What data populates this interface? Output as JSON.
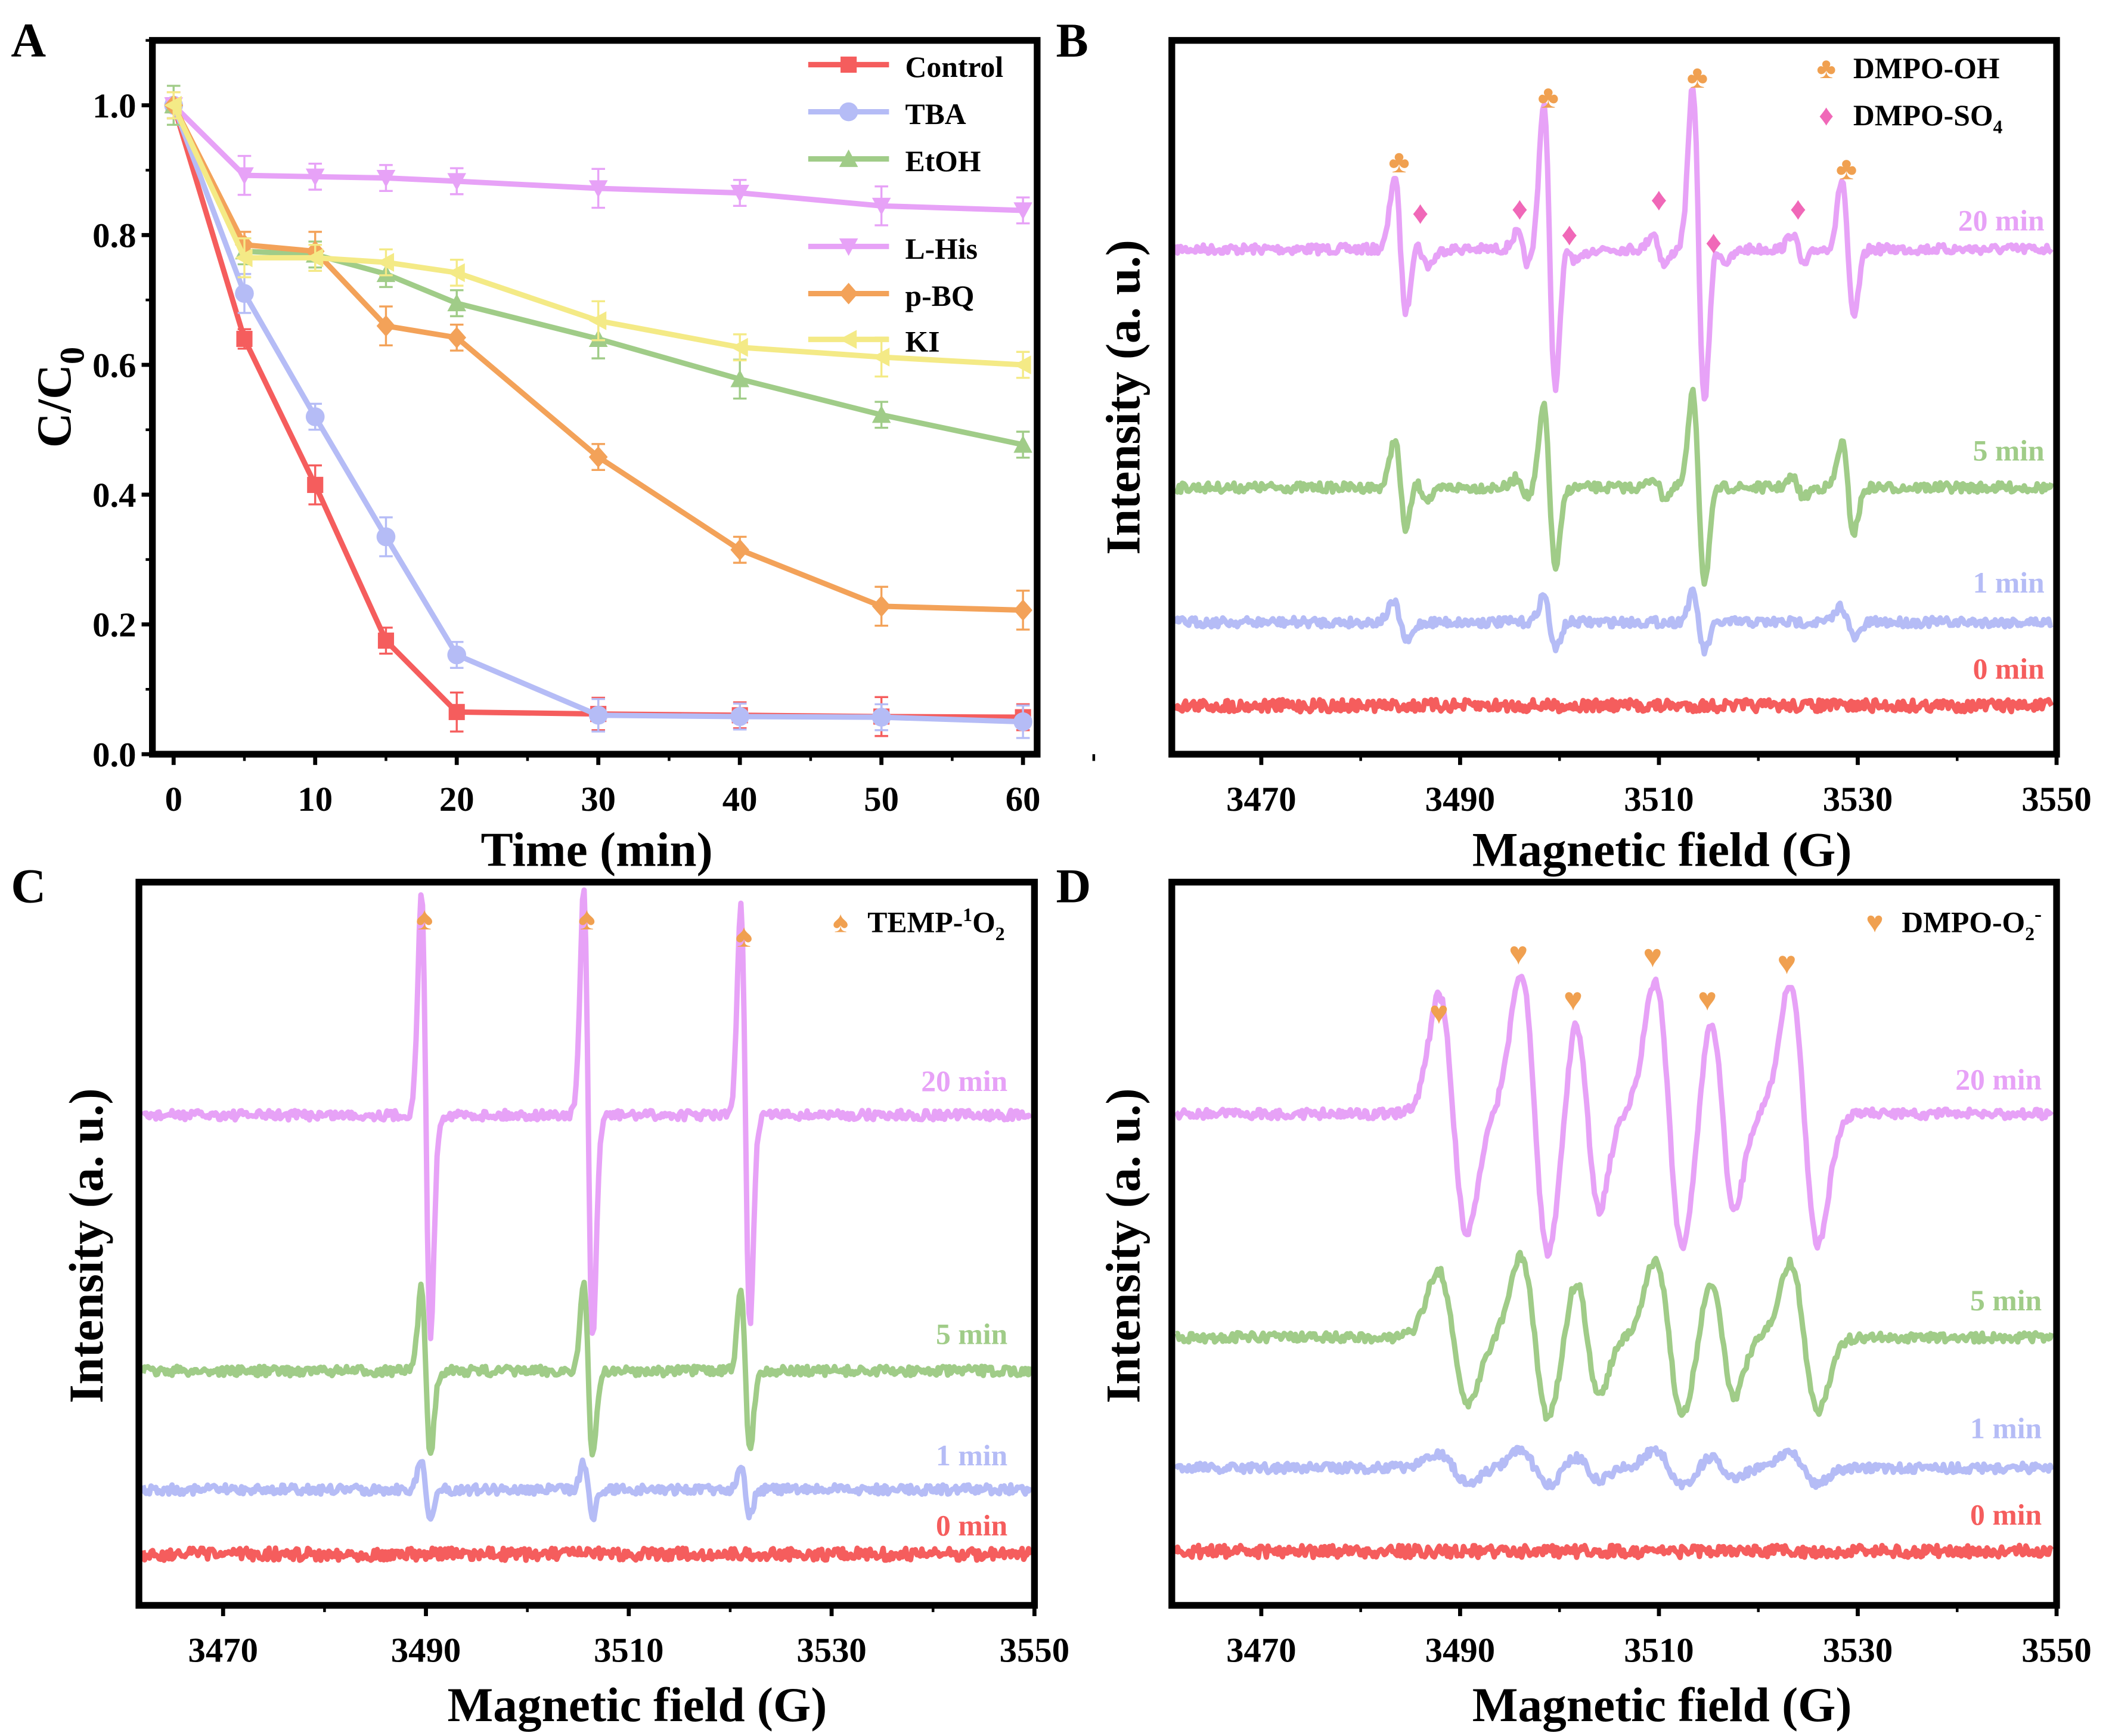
{
  "panel_labels": [
    "A",
    "B",
    "C",
    "D"
  ],
  "colors": {
    "pink": "#e7a2f7",
    "green": "#a0cc88",
    "blue": "#b5bcf6",
    "red": "#f55d5d",
    "orange": "#f3a259",
    "yellow": "#f4ea86",
    "marker_orange": "#f0a050",
    "marker_pink": "#f068b8"
  },
  "chart_data": [
    {
      "panel": "A",
      "type": "line",
      "xlabel": "Time (min)",
      "ylabel": "C/C0",
      "ylabel_main": "C/C",
      "ylabel_sub": "0",
      "xlim": [
        -1.5,
        61
      ],
      "ylim": [
        0,
        1.1
      ],
      "xticks": [
        "0",
        "10",
        "20",
        "30",
        "40",
        "50",
        "60"
      ],
      "yticks": [
        "0.0",
        "0.2",
        "0.4",
        "0.6",
        "0.8",
        "1.0"
      ],
      "legend_position": "top-right",
      "x": [
        0,
        5,
        10,
        15,
        20,
        30,
        40,
        50,
        60
      ],
      "series": [
        {
          "name": "Control",
          "color": "#f55d5d",
          "marker": "square",
          "values": [
            1.0,
            0.64,
            0.415,
            0.175,
            0.065,
            0.062,
            0.06,
            0.058,
            0.057
          ],
          "error": [
            0.02,
            0.015,
            0.03,
            0.02,
            0.03,
            0.025,
            0.02,
            0.03,
            0.02
          ]
        },
        {
          "name": "TBA",
          "color": "#b5bcf6",
          "marker": "circle",
          "values": [
            1.0,
            0.71,
            0.52,
            0.335,
            0.153,
            0.06,
            0.058,
            0.057,
            0.05
          ],
          "error": [
            0.02,
            0.03,
            0.02,
            0.03,
            0.02,
            0.025,
            0.02,
            0.02,
            0.025
          ]
        },
        {
          "name": "EtOH",
          "color": "#a0cc88",
          "marker": "triangle-up",
          "values": [
            1.0,
            0.775,
            0.77,
            0.74,
            0.695,
            0.64,
            0.578,
            0.523,
            0.477
          ],
          "error": [
            0.03,
            0.02,
            0.02,
            0.02,
            0.02,
            0.03,
            0.03,
            0.02,
            0.02
          ]
        },
        {
          "name": "L-His",
          "color": "#e7a2f7",
          "marker": "triangle-down",
          "values": [
            1.0,
            0.892,
            0.89,
            0.888,
            0.883,
            0.872,
            0.865,
            0.845,
            0.838
          ],
          "error": [
            0.02,
            0.03,
            0.02,
            0.02,
            0.02,
            0.03,
            0.02,
            0.03,
            0.02
          ]
        },
        {
          "name": "p-BQ",
          "color": "#f3a259",
          "marker": "diamond",
          "values": [
            1.0,
            0.785,
            0.775,
            0.66,
            0.642,
            0.458,
            0.315,
            0.228,
            0.222
          ],
          "error": [
            0.02,
            0.02,
            0.03,
            0.03,
            0.02,
            0.02,
            0.02,
            0.03,
            0.03
          ]
        },
        {
          "name": "KI",
          "color": "#f4ea86",
          "marker": "triangle-left",
          "values": [
            1.0,
            0.765,
            0.765,
            0.758,
            0.742,
            0.668,
            0.627,
            0.612,
            0.6
          ],
          "error": [
            0.02,
            0.03,
            0.02,
            0.02,
            0.02,
            0.03,
            0.02,
            0.03,
            0.02
          ]
        }
      ]
    },
    {
      "panel": "B",
      "type": "line",
      "xlabel": "Magnetic field (G)",
      "ylabel": "Intensity (a. u.)",
      "xlim": [
        3461,
        3550
      ],
      "xticks": [
        "3470",
        "3490",
        "3510",
        "3530",
        "3550"
      ],
      "legend": [
        {
          "label": "DMPO-OH",
          "label_main": "DMPO-OH",
          "label_sub": "",
          "symbol": "♣",
          "color": "#f0a050"
        },
        {
          "label": "DMPO-SO4",
          "label_main": "DMPO-SO",
          "label_sub": "4",
          "symbol": "♦",
          "color": "#f068b8"
        }
      ],
      "marker_peaks": {
        "DMPO-OH": [
          3484,
          3499,
          3514,
          3529
        ],
        "DMPO-SO4": [
          3486,
          3496,
          3501,
          3510,
          3515.5,
          3524
        ]
      },
      "series": [
        {
          "name": "20 min",
          "color": "#e7a2f7",
          "peaks": [
            {
              "field": 3484,
              "intensity": 0.45,
              "width": 0.6
            },
            {
              "field": 3499,
              "intensity": 0.9,
              "width": 0.6
            },
            {
              "field": 3514,
              "intensity": 1.0,
              "width": 0.6
            },
            {
              "field": 3529,
              "intensity": 0.43,
              "width": 0.6
            },
            {
              "field": 3486,
              "intensity": 0.1,
              "width": 0.8
            },
            {
              "field": 3496.3,
              "intensity": 0.1,
              "width": 0.6
            },
            {
              "field": 3501,
              "intensity": 0.08,
              "width": 0.8
            },
            {
              "field": 3510,
              "intensity": 0.1,
              "width": 0.6
            },
            {
              "field": 3516,
              "intensity": 0.08,
              "width": 0.8
            },
            {
              "field": 3524,
              "intensity": 0.1,
              "width": 0.6
            }
          ]
        },
        {
          "name": "5 min",
          "color": "#a0cc88",
          "peaks": [
            {
              "field": 3484,
              "intensity": 0.3,
              "width": 0.6
            },
            {
              "field": 3499,
              "intensity": 0.5,
              "width": 0.6
            },
            {
              "field": 3514,
              "intensity": 0.58,
              "width": 0.6
            },
            {
              "field": 3529,
              "intensity": 0.28,
              "width": 0.6
            },
            {
              "field": 3486,
              "intensity": 0.07,
              "width": 0.8
            },
            {
              "field": 3496.3,
              "intensity": 0.06,
              "width": 0.6
            },
            {
              "field": 3510,
              "intensity": 0.06,
              "width": 0.6
            },
            {
              "field": 3524,
              "intensity": 0.06,
              "width": 0.6
            }
          ]
        },
        {
          "name": "1 min",
          "color": "#b5bcf6",
          "peaks": [
            {
              "field": 3484,
              "intensity": 0.12,
              "width": 0.7
            },
            {
              "field": 3499,
              "intensity": 0.17,
              "width": 0.6
            },
            {
              "field": 3514,
              "intensity": 0.18,
              "width": 0.6
            },
            {
              "field": 3529,
              "intensity": 0.1,
              "width": 0.7
            }
          ]
        },
        {
          "name": "0 min",
          "color": "#f55d5d",
          "peaks": []
        }
      ]
    },
    {
      "panel": "C",
      "type": "line",
      "xlabel": "Magnetic field (G)",
      "ylabel": "Intensity (a. u.)",
      "xlim": [
        3461.7,
        3550
      ],
      "xticks": [
        "3470",
        "3490",
        "3510",
        "3530",
        "3550"
      ],
      "legend": [
        {
          "label": "TEMP-1O2",
          "label_main": "TEMP-",
          "label_sup": "1",
          "label_o": "O",
          "label_sub": "2",
          "symbol": "♠",
          "color": "#f0a050"
        }
      ],
      "marker_peaks": {
        "TEMP-1O2": [
          3490,
          3506,
          3521.5
        ]
      },
      "series": [
        {
          "name": "20 min",
          "color": "#e7a2f7",
          "peaks": [
            {
              "field": 3490,
              "intensity": 0.98,
              "width": 0.45
            },
            {
              "field": 3506,
              "intensity": 1.0,
              "width": 0.45
            },
            {
              "field": 3521.5,
              "intensity": 0.92,
              "width": 0.45
            }
          ]
        },
        {
          "name": "5 min",
          "color": "#a0cc88",
          "peaks": [
            {
              "field": 3490,
              "intensity": 0.37,
              "width": 0.45
            },
            {
              "field": 3506,
              "intensity": 0.38,
              "width": 0.45
            },
            {
              "field": 3521.5,
              "intensity": 0.35,
              "width": 0.45
            }
          ]
        },
        {
          "name": "1 min",
          "color": "#b5bcf6",
          "peaks": [
            {
              "field": 3490,
              "intensity": 0.13,
              "width": 0.45
            },
            {
              "field": 3506,
              "intensity": 0.12,
              "width": 0.45
            },
            {
              "field": 3521.5,
              "intensity": 0.11,
              "width": 0.45
            }
          ]
        },
        {
          "name": "0 min",
          "color": "#f55d5d",
          "peaks": []
        }
      ]
    },
    {
      "panel": "D",
      "type": "line",
      "xlabel": "Magnetic field (G)",
      "ylabel": "Intensity (a. u.)",
      "xlim": [
        3461,
        3550
      ],
      "xticks": [
        "3470",
        "3490",
        "3510",
        "3530",
        "3550"
      ],
      "legend": [
        {
          "label": "DMPO-O2-",
          "label_main": "DMPO-O",
          "label_sub": "2",
          "label_sup": "-",
          "symbol": "♥",
          "color": "#f0a050"
        }
      ],
      "marker_peaks": {
        "DMPO-O2-": [
          3488,
          3496,
          3501.5,
          3509.5,
          3515,
          3523
        ]
      },
      "series": [
        {
          "name": "20 min",
          "color": "#e7a2f7",
          "peaks": [
            {
              "field": 3489.3,
              "intensity": 0.8,
              "width": 1.4
            },
            {
              "field": 3497.5,
              "intensity": 0.95,
              "width": 1.4
            },
            {
              "field": 3502.8,
              "intensity": 0.65,
              "width": 1.2
            },
            {
              "field": 3511,
              "intensity": 0.9,
              "width": 1.4
            },
            {
              "field": 3516.4,
              "intensity": 0.65,
              "width": 1.2
            },
            {
              "field": 3524.6,
              "intensity": 0.88,
              "width": 1.4
            }
          ]
        },
        {
          "name": "5 min",
          "color": "#a0cc88",
          "peaks": [
            {
              "field": 3489.3,
              "intensity": 0.45,
              "width": 1.5
            },
            {
              "field": 3497.5,
              "intensity": 0.55,
              "width": 1.4
            },
            {
              "field": 3502.8,
              "intensity": 0.4,
              "width": 1.2
            },
            {
              "field": 3511,
              "intensity": 0.52,
              "width": 1.4
            },
            {
              "field": 3516.4,
              "intensity": 0.4,
              "width": 1.2
            },
            {
              "field": 3524.6,
              "intensity": 0.5,
              "width": 1.4
            }
          ]
        },
        {
          "name": "1 min",
          "color": "#b5bcf6",
          "peaks": [
            {
              "field": 3489.3,
              "intensity": 0.1,
              "width": 1.5
            },
            {
              "field": 3497.5,
              "intensity": 0.12,
              "width": 1.4
            },
            {
              "field": 3502.8,
              "intensity": 0.08,
              "width": 1.2
            },
            {
              "field": 3511,
              "intensity": 0.12,
              "width": 1.4
            },
            {
              "field": 3516.4,
              "intensity": 0.08,
              "width": 1.2
            },
            {
              "field": 3524.6,
              "intensity": 0.11,
              "width": 1.4
            }
          ]
        },
        {
          "name": "0 min",
          "color": "#f55d5d",
          "peaks": []
        }
      ]
    }
  ]
}
